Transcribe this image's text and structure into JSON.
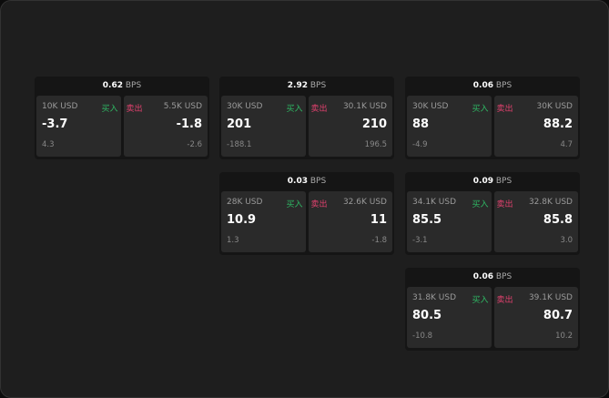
{
  "labels": {
    "buy": "买入",
    "sell": "卖出",
    "unit": "BPS"
  },
  "colors": {
    "buy": "#2fb864",
    "sell": "#e0416e"
  },
  "cards": [
    {
      "spread": "0.62",
      "bid_qty": "10K USD",
      "bid": "-3.7",
      "bid_chg": "4.3",
      "ask_qty": "5.5K USD",
      "ask": "-1.8",
      "ask_chg": "-2.6"
    },
    {
      "spread": "2.92",
      "bid_qty": "30K USD",
      "bid": "201",
      "bid_chg": "-188.1",
      "ask_qty": "30.1K USD",
      "ask": "210",
      "ask_chg": "196.5"
    },
    {
      "spread": "0.06",
      "bid_qty": "30K USD",
      "bid": "88",
      "bid_chg": "-4.9",
      "ask_qty": "30K USD",
      "ask": "88.2",
      "ask_chg": "4.7"
    },
    {
      "spread": "0.03",
      "bid_qty": "28K USD",
      "bid": "10.9",
      "bid_chg": "1.3",
      "ask_qty": "32.6K USD",
      "ask": "11",
      "ask_chg": "-1.8"
    },
    {
      "spread": "0.09",
      "bid_qty": "34.1K USD",
      "bid": "85.5",
      "bid_chg": "-3.1",
      "ask_qty": "32.8K USD",
      "ask": "85.8",
      "ask_chg": "3.0"
    },
    {
      "spread": "0.06",
      "bid_qty": "31.8K USD",
      "bid": "80.5",
      "bid_chg": "-10.8",
      "ask_qty": "39.1K USD",
      "ask": "80.7",
      "ask_chg": "10.2"
    }
  ]
}
